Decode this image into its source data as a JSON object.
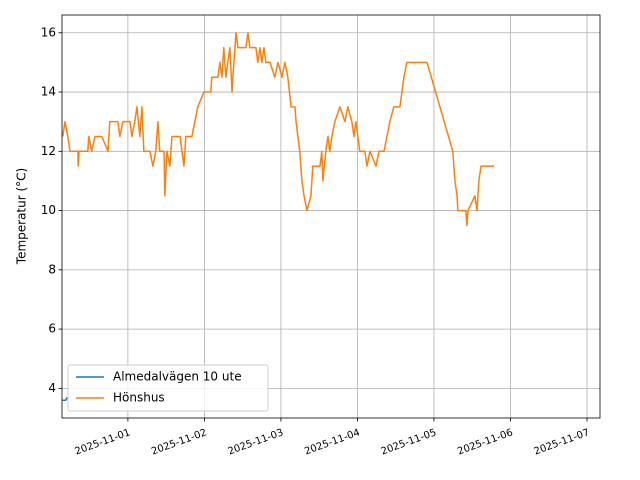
{
  "chart_data": {
    "type": "line",
    "y_label": "Temperatur (°C)",
    "xlim": [
      "2025-10-31T03:20",
      "2025-11-07T04:05"
    ],
    "xticks": [
      "2025-11-01",
      "2025-11-02",
      "2025-11-03",
      "2025-11-04",
      "2025-11-05",
      "2025-11-06",
      "2025-11-07"
    ],
    "ylim": [
      3.0,
      16.6
    ],
    "yticks": [
      4,
      6,
      8,
      10,
      12,
      14,
      16
    ],
    "grid": true,
    "legend": "lower left",
    "series": [
      {
        "name": "Almedalvägen 10 ute",
        "color": "#1f77b4",
        "x": [
          "2025-10-31T03:30",
          "2025-10-31T04:30",
          "2025-10-31T05:00"
        ],
        "values": [
          3.6,
          3.6,
          3.7
        ]
      },
      {
        "name": "Hönshus",
        "color": "#ff7f0e",
        "x": [
          "2025-10-31T03:35",
          "2025-10-31T04:15",
          "2025-10-31T05:10",
          "2025-10-31T05:50",
          "2025-10-31T08:20",
          "2025-10-31T08:25",
          "2025-10-31T08:40",
          "2025-10-31T11:25",
          "2025-10-31T11:45",
          "2025-10-31T12:40",
          "2025-10-31T13:40",
          "2025-10-31T15:50",
          "2025-10-31T17:45",
          "2025-10-31T18:20",
          "2025-10-31T20:50",
          "2025-10-31T21:30",
          "2025-10-31T22:25",
          "2025-11-01T00:40",
          "2025-11-01T01:15",
          "2025-11-01T02:10",
          "2025-11-01T02:50",
          "2025-11-01T03:45",
          "2025-11-01T04:25",
          "2025-11-01T05:00",
          "2025-11-01T06:55",
          "2025-11-01T07:50",
          "2025-11-01T08:45",
          "2025-11-01T09:25",
          "2025-11-01T10:00",
          "2025-11-01T11:20",
          "2025-11-01T11:35",
          "2025-11-01T12:15",
          "2025-11-01T13:10",
          "2025-11-01T13:50",
          "2025-11-01T16:20",
          "2025-11-01T17:35",
          "2025-11-01T18:10",
          "2025-11-01T20:05",
          "2025-11-01T21:00",
          "2025-11-01T21:55",
          "2025-11-01T23:50",
          "2025-11-02T02:00",
          "2025-11-02T02:20",
          "2025-11-02T04:15",
          "2025-11-02T04:50",
          "2025-11-02T05:30",
          "2025-11-02T06:05",
          "2025-11-02T06:45",
          "2025-11-02T07:20",
          "2025-11-02T08:00",
          "2025-11-02T08:40",
          "2025-11-02T09:15",
          "2025-11-02T09:55",
          "2025-11-02T10:30",
          "2025-11-02T13:00",
          "2025-11-02T13:40",
          "2025-11-02T14:15",
          "2025-11-02T16:10",
          "2025-11-02T16:45",
          "2025-11-02T17:25",
          "2025-11-02T18:00",
          "2025-11-02T18:40",
          "2025-11-02T19:15",
          "2025-11-02T20:35",
          "2025-11-02T22:05",
          "2025-11-02T23:05",
          "2025-11-03T00:20",
          "2025-11-03T01:15",
          "2025-11-03T02:10",
          "2025-11-03T03:10",
          "2025-11-03T04:25",
          "2025-11-03T04:45",
          "2025-11-03T05:20",
          "2025-11-03T05:55",
          "2025-11-03T06:35",
          "2025-11-03T07:15",
          "2025-11-03T08:10",
          "2025-11-03T09:25",
          "2025-11-03T10:00",
          "2025-11-03T12:15",
          "2025-11-03T12:50",
          "2025-11-03T13:10",
          "2025-11-03T14:05",
          "2025-11-03T14:45",
          "2025-11-03T15:20",
          "2025-11-03T16:00",
          "2025-11-03T16:55",
          "2025-11-03T18:30",
          "2025-11-03T20:05",
          "2025-11-03T21:00",
          "2025-11-03T22:15",
          "2025-11-03T22:55",
          "2025-11-03T23:30",
          "2025-11-04T00:45",
          "2025-11-04T02:20",
          "2025-11-04T03:00",
          "2025-11-04T03:55",
          "2025-11-04T05:50",
          "2025-11-04T06:45",
          "2025-11-04T08:20",
          "2025-11-04T09:15",
          "2025-11-04T10:10",
          "2025-11-04T11:25",
          "2025-11-04T13:20",
          "2025-11-04T14:35",
          "2025-11-04T15:30",
          "2025-11-04T21:50",
          "2025-11-05T05:55",
          "2025-11-05T06:35",
          "2025-11-05T07:15",
          "2025-11-05T07:30",
          "2025-11-05T10:00",
          "2025-11-05T10:20",
          "2025-11-05T10:40",
          "2025-11-05T12:50",
          "2025-11-05T13:30",
          "2025-11-05T14:05",
          "2025-11-05T14:45",
          "2025-11-05T18:50"
        ],
        "values": [
          12.5,
          13.0,
          12.5,
          12.0,
          12.0,
          11.5,
          12.0,
          12.0,
          12.5,
          12.0,
          12.5,
          12.5,
          12.0,
          13.0,
          13.0,
          12.5,
          13.0,
          13.0,
          12.5,
          13.0,
          13.5,
          12.5,
          13.5,
          12.0,
          12.0,
          11.5,
          12.0,
          13.0,
          12.0,
          12.0,
          10.5,
          12.0,
          11.5,
          12.5,
          12.5,
          11.5,
          12.5,
          12.5,
          13.0,
          13.5,
          14.0,
          14.0,
          14.5,
          14.5,
          15.0,
          14.5,
          15.5,
          14.5,
          15.0,
          15.5,
          14.0,
          15.0,
          16.0,
          15.5,
          15.5,
          16.0,
          15.5,
          15.5,
          15.0,
          15.5,
          15.0,
          15.5,
          15.0,
          15.0,
          14.5,
          15.0,
          14.5,
          15.0,
          14.5,
          13.5,
          13.5,
          13.0,
          12.5,
          12.0,
          11.0,
          10.5,
          10.0,
          10.5,
          11.5,
          11.5,
          12.0,
          11.0,
          12.0,
          12.5,
          12.0,
          12.5,
          13.0,
          13.5,
          13.0,
          13.5,
          13.0,
          12.5,
          13.0,
          12.0,
          12.0,
          11.5,
          12.0,
          11.5,
          12.0,
          12.0,
          12.5,
          13.0,
          13.5,
          13.5,
          14.5,
          15.0,
          15.0,
          12.0,
          11.0,
          10.5,
          10.0,
          10.0,
          9.5,
          10.0,
          10.5,
          10.0,
          11.0,
          11.5,
          11.5
        ]
      }
    ]
  }
}
